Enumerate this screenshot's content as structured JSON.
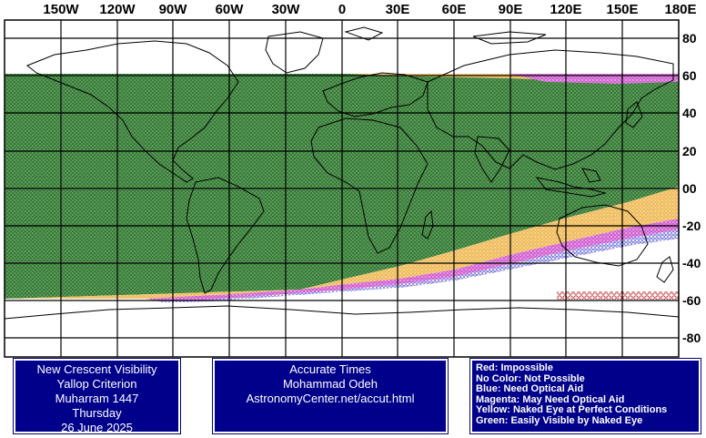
{
  "map": {
    "longitude_labels": [
      "150W",
      "120W",
      "90W",
      "60W",
      "30W",
      "0",
      "30E",
      "60E",
      "90E",
      "120E",
      "150E",
      "180E"
    ],
    "latitude_labels": [
      "80",
      "60",
      "40",
      "20",
      "00",
      "-20",
      "-40",
      "-60",
      "-80"
    ],
    "colors": {
      "green": "#1f7a1f",
      "green_fill": "#4e8c4e",
      "yellow": "#f5c060",
      "magenta": "#d050d0",
      "blue": "#2222cc",
      "red": "#c02020",
      "grid": "#000000",
      "coast": "#000000"
    }
  },
  "panels": {
    "visibility": {
      "line1": "New Crescent Visibility",
      "line2": "Yallop Criterion",
      "line3": "Muharram 1447",
      "line4": "Thursday",
      "line5": "26 June 2025"
    },
    "times": {
      "line1": "Accurate Times",
      "line2": "Mohammad Odeh",
      "line3": "AstronomyCenter.net/accut.html"
    },
    "legend": {
      "red": "Red: Impossible",
      "none": "No Color: Not Possible",
      "blue": "Blue: Need Optical Aid",
      "magenta": "Magenta: May Need Optical Aid",
      "yellow": "Yellow: Naked Eye at Perfect Conditions",
      "green": "Green: Easily Visible by Naked Eye"
    }
  }
}
